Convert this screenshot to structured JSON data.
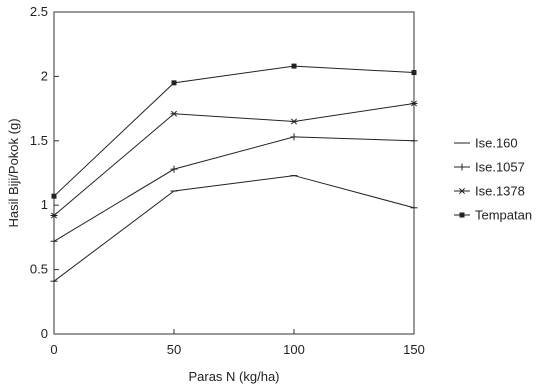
{
  "chart_data": {
    "type": "line",
    "xlabel": "Paras N (kg/ha)",
    "ylabel": "Hasil Biji/Pokok (g)",
    "x": [
      0,
      50,
      100,
      150
    ],
    "xlim": [
      0,
      150
    ],
    "ylim": [
      0,
      2.5
    ],
    "xticks": [
      "0",
      "50",
      "100",
      "150"
    ],
    "yticks": [
      "0",
      "0.5",
      "1",
      "1.5",
      "2",
      "2.5"
    ],
    "grid": false,
    "legend_position": "right",
    "series": [
      {
        "name": "Ise.160",
        "marker": "dash",
        "values": [
          0.41,
          1.11,
          1.23,
          0.98
        ]
      },
      {
        "name": "Ise.1057",
        "marker": "plus",
        "values": [
          0.72,
          1.28,
          1.53,
          1.5
        ]
      },
      {
        "name": "Ise.1378",
        "marker": "asterisk",
        "values": [
          0.92,
          1.71,
          1.65,
          1.79
        ]
      },
      {
        "name": "Tempatan",
        "marker": "square",
        "values": [
          1.07,
          1.95,
          2.08,
          2.03
        ]
      }
    ]
  }
}
